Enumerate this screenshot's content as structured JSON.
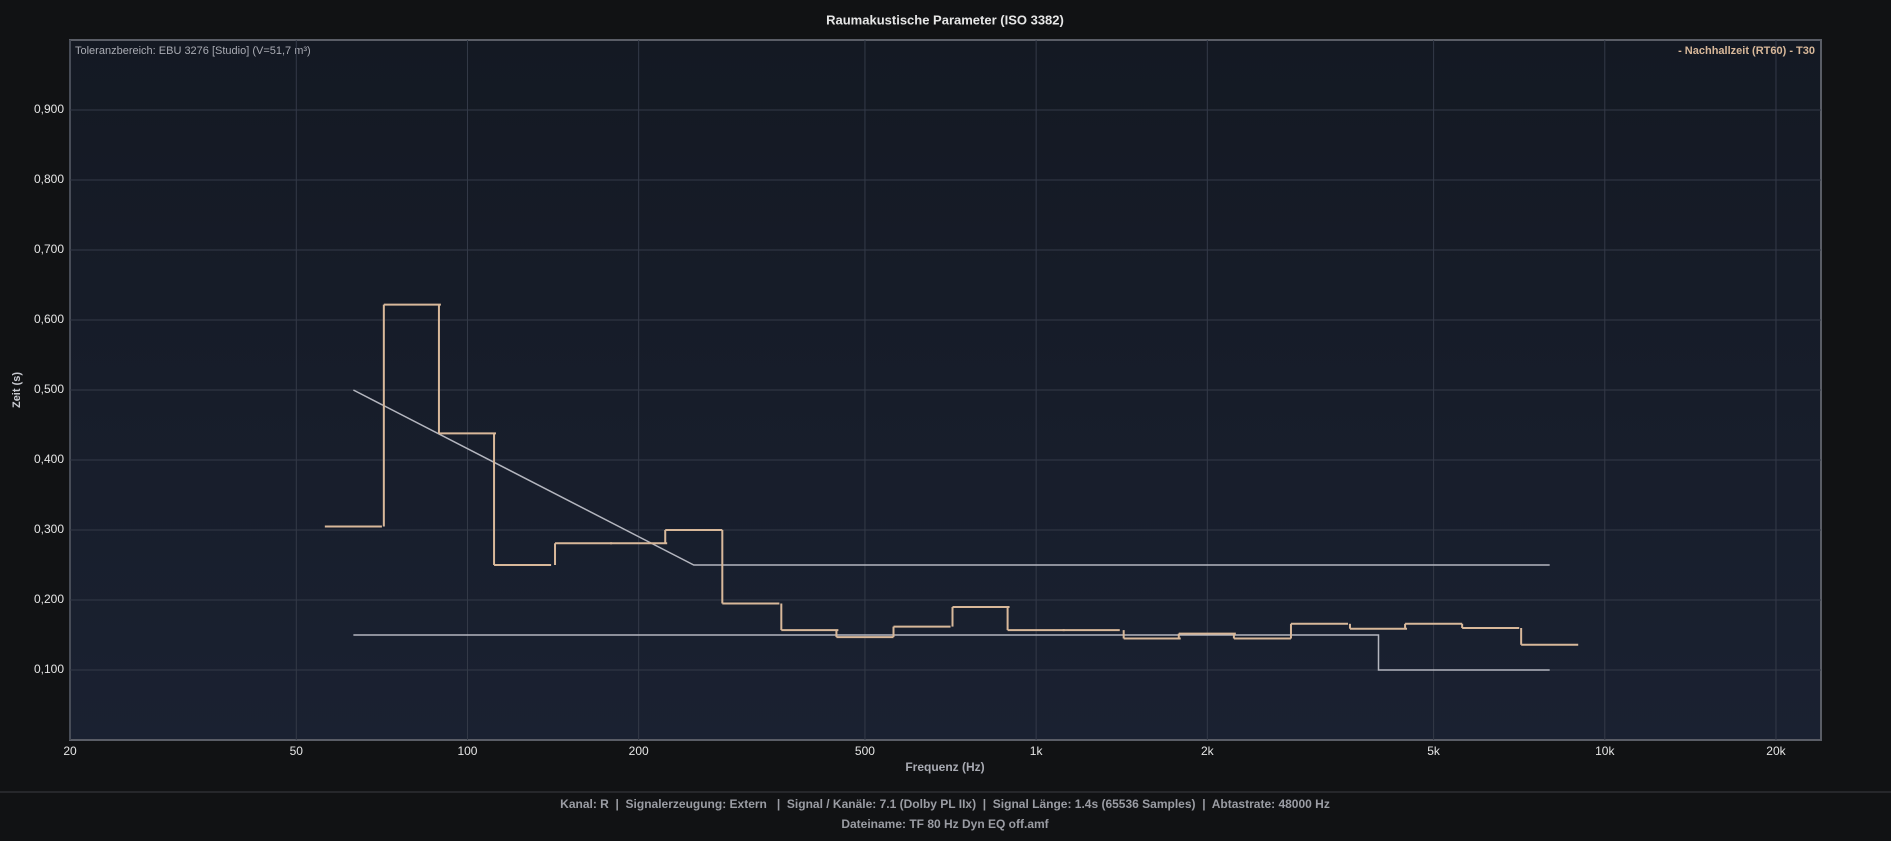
{
  "chart_data": {
    "type": "step",
    "title": "Raumakustische Parameter (ISO 3382)",
    "x_label": "Frequenz (Hz)",
    "y_label": "Zeit (s)",
    "annotation": "Toleranzbereich: EBU 3276 [Studio] (V=51,7 m³)",
    "x_scale": "log",
    "xlim": [
      20,
      24000
    ],
    "ylim": [
      0,
      1.0
    ],
    "xticks": [
      20,
      50,
      100,
      200,
      500,
      {
        "value": 1000,
        "label": "1k"
      },
      {
        "value": 2000,
        "label": "2k"
      },
      {
        "value": 5000,
        "label": "5k"
      },
      {
        "value": 10000,
        "label": "10k"
      },
      {
        "value": 20000,
        "label": "20k"
      }
    ],
    "yticks": [
      {
        "value": 0.1,
        "label": "0,100"
      },
      {
        "value": 0.2,
        "label": "0,200"
      },
      {
        "value": 0.3,
        "label": "0,300"
      },
      {
        "value": 0.4,
        "label": "0,400"
      },
      {
        "value": 0.5,
        "label": "0,500"
      },
      {
        "value": 0.6,
        "label": "0,600"
      },
      {
        "value": 0.7,
        "label": "0,700"
      },
      {
        "value": 0.8,
        "label": "0,800"
      },
      {
        "value": 0.9,
        "label": "0,900"
      }
    ],
    "grid": true,
    "legend": "top-right",
    "series": [
      {
        "name": "- Nachhallzeit (RT60) - T30",
        "color": "#d8b89a",
        "x": [
          63,
          80,
          100,
          125,
          160,
          200,
          250,
          315,
          400,
          500,
          630,
          800,
          1000,
          1250,
          1600,
          2000,
          2500,
          3150,
          4000,
          5000,
          6300,
          8000
        ],
        "values": [
          0.305,
          0.622,
          0.438,
          0.25,
          0.281,
          0.281,
          0.3,
          0.195,
          0.157,
          0.147,
          0.162,
          0.19,
          0.157,
          0.157,
          0.145,
          0.152,
          0.145,
          0.166,
          0.159,
          0.166,
          0.16,
          0.136
        ]
      }
    ],
    "tolerance_color": "#b4b6bf",
    "tolerance_lines": [
      {
        "x": [
          63,
          250,
          8000
        ],
        "values": [
          0.5,
          0.25,
          0.25
        ]
      },
      {
        "x": [
          63,
          4000,
          4000,
          8000
        ],
        "values": [
          0.15,
          0.15,
          0.1,
          0.1
        ]
      }
    ]
  },
  "footer": {
    "lines": [
      "Kanal: R  |  Signalerzeugung: Extern   |  Signal / Kanäle: 7.1 (Dolby PL IIx)  |  Signal Länge: 1.4s (65536 Samples)  |  Abtastrate: 48000 Hz",
      "Dateiname: TF 80 Hz Dyn EQ off.amf"
    ]
  }
}
